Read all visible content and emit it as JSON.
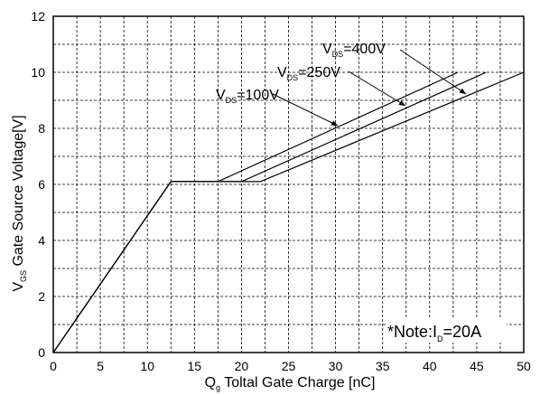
{
  "chart_data": {
    "type": "line",
    "xlabel": {
      "main": "Q",
      "sub": "g",
      "rest": " Toltal Gate Charge [nC]"
    },
    "ylabel": {
      "main": "V",
      "sub": "GS",
      "rest": " Gate Source Voltage[V]"
    },
    "xlim": [
      0,
      50
    ],
    "ylim": [
      0,
      12
    ],
    "xticks": [
      0,
      5,
      10,
      15,
      20,
      25,
      30,
      35,
      40,
      45,
      50
    ],
    "yticks": [
      0,
      2,
      4,
      6,
      8,
      10,
      12
    ],
    "grid": true,
    "series": [
      {
        "name": "VDS=100V",
        "x": [
          0,
          12.5,
          17.5,
          43
        ],
        "y": [
          0,
          6.1,
          6.1,
          10
        ]
      },
      {
        "name": "VDS=250V",
        "x": [
          0,
          12.5,
          20,
          46
        ],
        "y": [
          0,
          6.1,
          6.1,
          10
        ]
      },
      {
        "name": "VDS=400V",
        "x": [
          0,
          12.5,
          22,
          50
        ],
        "y": [
          0,
          6.1,
          6.1,
          10
        ]
      }
    ],
    "annotations": [
      {
        "main": "V",
        "sub": "DS",
        "rest": "=100V"
      },
      {
        "main": "V",
        "sub": "DS",
        "rest": "=250V"
      },
      {
        "main": "V",
        "sub": "DS",
        "rest": "=400V"
      }
    ],
    "note": {
      "main": "*Note:I",
      "sub": "D",
      "rest": "=20A"
    }
  }
}
